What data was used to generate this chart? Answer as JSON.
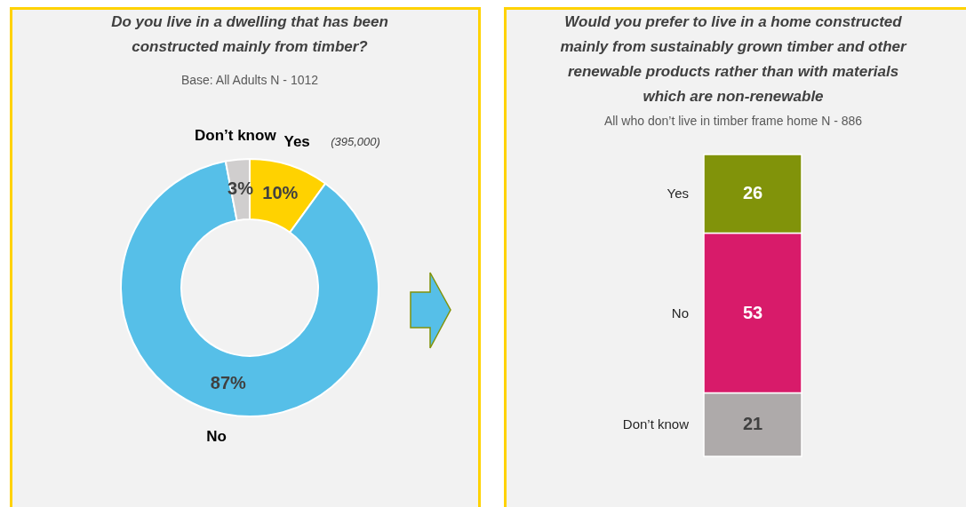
{
  "chart_data": [
    {
      "type": "donut",
      "title": "Do you live in a dwelling that has been constructed mainly from timber?",
      "subtitle": "Base: All Adults N - 1012",
      "categories": [
        "Yes",
        "No",
        "Don’t know"
      ],
      "values": [
        10,
        87,
        3
      ],
      "colors": [
        "#ffd200",
        "#56bfe8",
        "#d0cece"
      ],
      "value_labels": [
        "10%",
        "87%",
        "3%"
      ],
      "annotations": [
        {
          "text": "(395,000)",
          "x": "Yes"
        }
      ],
      "legend": false
    },
    {
      "type": "bar",
      "title": "Would you prefer to live in a home constructed mainly from sustainably grown timber and other renewable products rather than with materials which are non-renewable",
      "subtitle": "All who don’t live in timber frame home N - 886",
      "stacked": true,
      "categories": [
        null
      ],
      "data_labels": true,
      "legend": false,
      "series": [
        {
          "name": "Don’t know",
          "color": "#aeaaaa",
          "values": [
            21
          ]
        },
        {
          "name": "No",
          "color": "#d81b6a",
          "values": [
            53
          ]
        },
        {
          "name": "Yes",
          "color": "#81930a",
          "values": [
            26
          ]
        }
      ]
    }
  ]
}
